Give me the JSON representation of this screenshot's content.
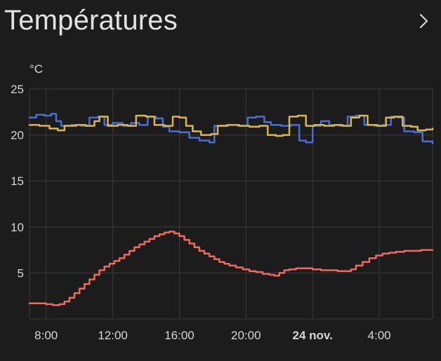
{
  "theme": {
    "background": "#1c1c1c",
    "title_color": "#e2e2e2",
    "icon_color": "#d6d6d6"
  },
  "header": {
    "title": "Températures"
  },
  "chart_data": {
    "type": "line",
    "title": "Températures",
    "unit": "°C",
    "xlim": [
      7.0,
      31.2
    ],
    "ylim": [
      0,
      25
    ],
    "grid": true,
    "legend": "none",
    "grid_color": "#3a3a3a",
    "axis_text_color": "#d6d6d6",
    "yticks": [
      0,
      5,
      10,
      15,
      20,
      25
    ],
    "ytick_labels": [
      "",
      "5",
      "10",
      "15",
      "20",
      "25"
    ],
    "xticks": [
      {
        "t": 8,
        "label": "8:00",
        "bold": false
      },
      {
        "t": 12,
        "label": "12:00",
        "bold": false
      },
      {
        "t": 16,
        "label": "16:00",
        "bold": false
      },
      {
        "t": 20,
        "label": "20:00",
        "bold": false
      },
      {
        "t": 24,
        "label": "24 nov.",
        "bold": true
      },
      {
        "t": 28,
        "label": "4:00",
        "bold": false
      }
    ],
    "series": [
      {
        "name": "series-blue",
        "color": "#4a6fd4",
        "step": true,
        "points": [
          [
            7.0,
            21.9
          ],
          [
            7.4,
            22.2
          ],
          [
            7.9,
            22.1
          ],
          [
            8.3,
            22.3
          ],
          [
            8.6,
            21.5
          ],
          [
            8.9,
            21.0
          ],
          [
            9.5,
            21.1
          ],
          [
            10.1,
            21.0
          ],
          [
            10.6,
            21.9
          ],
          [
            11.1,
            22.0
          ],
          [
            11.5,
            21.1
          ],
          [
            12.0,
            21.3
          ],
          [
            12.6,
            21.0
          ],
          [
            13.1,
            21.3
          ],
          [
            13.6,
            21.1
          ],
          [
            14.1,
            22.0
          ],
          [
            14.6,
            21.8
          ],
          [
            15.0,
            20.9
          ],
          [
            15.4,
            20.4
          ],
          [
            16.0,
            20.3
          ],
          [
            16.6,
            19.7
          ],
          [
            17.2,
            19.4
          ],
          [
            17.8,
            19.2
          ],
          [
            18.1,
            21.0
          ],
          [
            18.8,
            21.1
          ],
          [
            19.5,
            21.0
          ],
          [
            20.1,
            21.9
          ],
          [
            20.6,
            22.0
          ],
          [
            21.1,
            21.4
          ],
          [
            21.5,
            21.1
          ],
          [
            22.1,
            21.0
          ],
          [
            22.7,
            21.1
          ],
          [
            23.2,
            19.4
          ],
          [
            23.6,
            19.2
          ],
          [
            24.0,
            21.0
          ],
          [
            24.5,
            21.5
          ],
          [
            25.0,
            21.1
          ],
          [
            25.6,
            21.0
          ],
          [
            26.1,
            22.0
          ],
          [
            26.6,
            22.1
          ],
          [
            27.1,
            21.1
          ],
          [
            27.7,
            21.0
          ],
          [
            28.2,
            21.1
          ],
          [
            28.7,
            22.0
          ],
          [
            29.1,
            21.9
          ],
          [
            29.5,
            20.4
          ],
          [
            30.1,
            20.3
          ],
          [
            30.6,
            19.3
          ],
          [
            31.2,
            19.1
          ]
        ]
      },
      {
        "name": "series-yellow",
        "color": "#dcb64a",
        "step": true,
        "points": [
          [
            7.0,
            21.1
          ],
          [
            7.6,
            21.0
          ],
          [
            8.2,
            20.7
          ],
          [
            8.7,
            20.5
          ],
          [
            9.1,
            21.0
          ],
          [
            9.8,
            21.1
          ],
          [
            10.4,
            21.0
          ],
          [
            10.9,
            21.5
          ],
          [
            11.2,
            22.0
          ],
          [
            11.7,
            21.0
          ],
          [
            12.3,
            21.1
          ],
          [
            12.9,
            21.0
          ],
          [
            13.4,
            22.1
          ],
          [
            14.0,
            22.0
          ],
          [
            14.5,
            21.1
          ],
          [
            15.1,
            21.0
          ],
          [
            15.6,
            22.0
          ],
          [
            16.0,
            21.9
          ],
          [
            16.4,
            21.0
          ],
          [
            16.8,
            20.4
          ],
          [
            17.3,
            20.0
          ],
          [
            17.9,
            20.1
          ],
          [
            18.3,
            21.0
          ],
          [
            18.9,
            21.1
          ],
          [
            19.6,
            21.0
          ],
          [
            20.2,
            20.9
          ],
          [
            20.8,
            21.0
          ],
          [
            21.3,
            20.0
          ],
          [
            21.8,
            19.9
          ],
          [
            22.2,
            20.0
          ],
          [
            22.6,
            22.0
          ],
          [
            23.1,
            22.1
          ],
          [
            23.6,
            21.0
          ],
          [
            24.1,
            21.1
          ],
          [
            24.7,
            21.0
          ],
          [
            25.3,
            21.1
          ],
          [
            25.8,
            21.0
          ],
          [
            26.3,
            21.9
          ],
          [
            26.8,
            22.1
          ],
          [
            27.3,
            21.1
          ],
          [
            27.9,
            21.0
          ],
          [
            28.4,
            21.9
          ],
          [
            28.9,
            22.0
          ],
          [
            29.4,
            21.0
          ],
          [
            29.9,
            20.9
          ],
          [
            30.3,
            20.5
          ],
          [
            30.8,
            20.6
          ],
          [
            31.2,
            20.7
          ]
        ]
      },
      {
        "name": "series-red",
        "color": "#ed6a5e",
        "step": true,
        "points": [
          [
            7.0,
            1.7
          ],
          [
            7.5,
            1.7
          ],
          [
            8.0,
            1.6
          ],
          [
            8.4,
            1.5
          ],
          [
            8.8,
            1.6
          ],
          [
            9.1,
            1.9
          ],
          [
            9.4,
            2.3
          ],
          [
            9.7,
            2.8
          ],
          [
            10.0,
            3.3
          ],
          [
            10.3,
            3.8
          ],
          [
            10.6,
            4.3
          ],
          [
            10.9,
            4.8
          ],
          [
            11.2,
            5.3
          ],
          [
            11.5,
            5.7
          ],
          [
            11.8,
            6.0
          ],
          [
            12.1,
            6.3
          ],
          [
            12.4,
            6.6
          ],
          [
            12.7,
            7.0
          ],
          [
            13.0,
            7.4
          ],
          [
            13.3,
            7.8
          ],
          [
            13.6,
            8.1
          ],
          [
            13.9,
            8.4
          ],
          [
            14.2,
            8.7
          ],
          [
            14.5,
            9.0
          ],
          [
            14.8,
            9.2
          ],
          [
            15.1,
            9.4
          ],
          [
            15.4,
            9.5
          ],
          [
            15.7,
            9.3
          ],
          [
            16.0,
            9.0
          ],
          [
            16.3,
            8.6
          ],
          [
            16.6,
            8.2
          ],
          [
            16.9,
            7.8
          ],
          [
            17.2,
            7.4
          ],
          [
            17.5,
            7.1
          ],
          [
            17.8,
            6.8
          ],
          [
            18.1,
            6.5
          ],
          [
            18.4,
            6.2
          ],
          [
            18.7,
            6.0
          ],
          [
            19.0,
            5.8
          ],
          [
            19.4,
            5.6
          ],
          [
            19.8,
            5.4
          ],
          [
            20.2,
            5.2
          ],
          [
            20.6,
            5.1
          ],
          [
            21.0,
            4.9
          ],
          [
            21.4,
            4.8
          ],
          [
            21.7,
            4.7
          ],
          [
            22.0,
            5.0
          ],
          [
            22.3,
            5.3
          ],
          [
            22.6,
            5.4
          ],
          [
            23.0,
            5.5
          ],
          [
            23.5,
            5.5
          ],
          [
            24.0,
            5.4
          ],
          [
            24.5,
            5.3
          ],
          [
            25.0,
            5.3
          ],
          [
            25.5,
            5.2
          ],
          [
            26.0,
            5.2
          ],
          [
            26.3,
            5.4
          ],
          [
            26.6,
            5.8
          ],
          [
            27.0,
            6.2
          ],
          [
            27.4,
            6.6
          ],
          [
            27.8,
            6.9
          ],
          [
            28.2,
            7.1
          ],
          [
            28.6,
            7.2
          ],
          [
            29.0,
            7.3
          ],
          [
            29.5,
            7.4
          ],
          [
            30.0,
            7.4
          ],
          [
            30.5,
            7.5
          ],
          [
            31.2,
            7.5
          ]
        ]
      }
    ]
  }
}
